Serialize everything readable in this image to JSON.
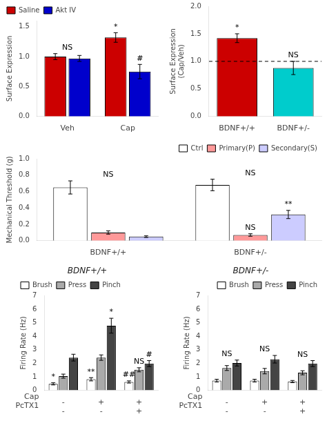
{
  "chart_data": [
    {
      "type": "bar",
      "categories": [
        "Veh",
        "Cap"
      ],
      "series": [
        {
          "name": "Saline",
          "color": "#cc0000",
          "values": [
            1.0,
            1.32
          ],
          "errors": [
            0.05,
            0.08
          ]
        },
        {
          "name": "Akt IV",
          "color": "#0000cc",
          "values": [
            0.97,
            0.75
          ],
          "errors": [
            0.05,
            0.12
          ]
        }
      ],
      "ylabel": "Surface Expression",
      "ylim": [
        0,
        1.6
      ],
      "yticks": [
        {
          "value": 0.0,
          "label": "0.0"
        },
        {
          "value": 0.5,
          "label": "0.5"
        },
        {
          "value": 1.0,
          "label": "1.0"
        },
        {
          "value": 1.5,
          "label": "1.5"
        }
      ],
      "grid": false,
      "legend": "upper left",
      "annotations": [
        {
          "text": "NS",
          "category_index": 0
        },
        {
          "text": "*",
          "category_index": 1,
          "series": "Saline"
        },
        {
          "text": "#",
          "category_index": 1,
          "series": "Akt IV"
        }
      ]
    },
    {
      "type": "bar",
      "categories": [
        "BDNF+/+",
        "BDNF+/-"
      ],
      "values": [
        1.42,
        0.88
      ],
      "errors": [
        0.08,
        0.12
      ],
      "colors": [
        "#cc0000",
        "#00cccc"
      ],
      "ylabel": "Surface Expression\n(Cap/Veh)",
      "ylim": [
        0,
        2.0
      ],
      "yticks": [
        {
          "value": 0.0,
          "label": "0.0"
        },
        {
          "value": 0.5,
          "label": "0.5"
        },
        {
          "value": 1.0,
          "label": "1.0"
        },
        {
          "value": 1.5,
          "label": "1.5"
        },
        {
          "value": 2.0,
          "label": "2.0"
        }
      ],
      "hline": 1.0,
      "grid": false,
      "annotations": [
        {
          "text": "*",
          "category_index": 0
        },
        {
          "text": "NS",
          "category_index": 1
        }
      ]
    },
    {
      "type": "bar",
      "categories": [
        "BDNF+/+",
        "BDNF+/-"
      ],
      "series": [
        {
          "name": "Ctrl",
          "color": "#ffffff",
          "values": [
            0.65,
            0.68
          ],
          "errors": [
            0.08,
            0.07
          ]
        },
        {
          "name": "Primary(P)",
          "color": "#ff9999",
          "values": [
            0.1,
            0.07
          ],
          "errors": [
            0.02,
            0.015
          ]
        },
        {
          "name": "Secondary(S)",
          "color": "#ccccff",
          "values": [
            0.05,
            0.32
          ],
          "errors": [
            0.01,
            0.05
          ]
        }
      ],
      "ylabel": "Mechanical Threshold (g)",
      "ylim": [
        0,
        1.0
      ],
      "yticks": [
        {
          "value": 0.0,
          "label": "0.0"
        },
        {
          "value": 0.2,
          "label": "0.2"
        },
        {
          "value": 0.4,
          "label": "0.4"
        },
        {
          "value": 0.6,
          "label": "0.6"
        },
        {
          "value": 0.8,
          "label": "0.8"
        },
        {
          "value": 1.0,
          "label": "1.0"
        }
      ],
      "grid": false,
      "legend": "upper right",
      "annotations": [
        {
          "text": "NS",
          "category_index": 0
        },
        {
          "text": "NS",
          "category_index": 1
        },
        {
          "text": "NS",
          "category_index": 1,
          "series": "Primary(P)"
        },
        {
          "text": "**",
          "category_index": 1,
          "series": "Secondary(S)"
        }
      ]
    },
    {
      "type": "bar",
      "title": "BDNF+/+",
      "categories": [
        [
          "-",
          "-"
        ],
        [
          "+",
          "-"
        ],
        [
          "+",
          "+"
        ]
      ],
      "category_rows": [
        "Cap",
        "PcTX1"
      ],
      "series": [
        {
          "name": "Brush",
          "color": "#ffffff",
          "values": [
            0.48,
            0.82,
            0.62
          ],
          "errors": [
            0.08,
            0.12,
            0.08
          ]
        },
        {
          "name": "Press",
          "color": "#aaaaaa",
          "values": [
            1.05,
            2.42,
            1.52
          ],
          "errors": [
            0.15,
            0.2,
            0.15
          ]
        },
        {
          "name": "Pinch",
          "color": "#444444",
          "values": [
            2.42,
            4.78,
            1.98
          ],
          "errors": [
            0.25,
            0.55,
            0.22
          ]
        }
      ],
      "ylabel": "Firing Rate (Hz)",
      "ylim": [
        0,
        7
      ],
      "yticks": [
        0,
        1,
        2,
        3,
        4,
        5,
        6,
        7
      ],
      "grid": false,
      "legend": "upper left",
      "annotations": [
        {
          "text": "*",
          "category_index": 0,
          "series": "Brush"
        },
        {
          "text": "**",
          "category_index": 1,
          "series": "Brush"
        },
        {
          "text": "*",
          "category_index": 1,
          "series": "Pinch"
        },
        {
          "text": "NS",
          "category_index": 2,
          "series": "Press"
        },
        {
          "text": "##",
          "category_index": 2,
          "series": "Brush"
        },
        {
          "text": "#",
          "category_index": 2,
          "series": "Pinch"
        }
      ]
    },
    {
      "type": "bar",
      "title": "BDNF+/-",
      "categories": [
        [
          "-",
          "-"
        ],
        [
          "+",
          "-"
        ],
        [
          "+",
          "+"
        ]
      ],
      "category_rows": [
        "Cap",
        "PcTX1"
      ],
      "series": [
        {
          "name": "Brush",
          "color": "#ffffff",
          "values": [
            0.72,
            0.72,
            0.65
          ],
          "errors": [
            0.1,
            0.1,
            0.08
          ]
        },
        {
          "name": "Press",
          "color": "#aaaaaa",
          "values": [
            1.65,
            1.42,
            1.3
          ],
          "errors": [
            0.18,
            0.2,
            0.15
          ]
        },
        {
          "name": "Pinch",
          "color": "#444444",
          "values": [
            2.02,
            2.3,
            1.98
          ],
          "errors": [
            0.22,
            0.28,
            0.22
          ]
        }
      ],
      "ylabel": "Firing Rate (Hz)",
      "ylim": [
        0,
        7
      ],
      "yticks": [
        0,
        1,
        2,
        3,
        4,
        5,
        6,
        7
      ],
      "grid": false,
      "legend": "upper right",
      "annotations": [
        {
          "text": "NS",
          "category_index": 0
        },
        {
          "text": "NS",
          "category_index": 1
        },
        {
          "text": "NS",
          "category_index": 2
        }
      ]
    }
  ]
}
